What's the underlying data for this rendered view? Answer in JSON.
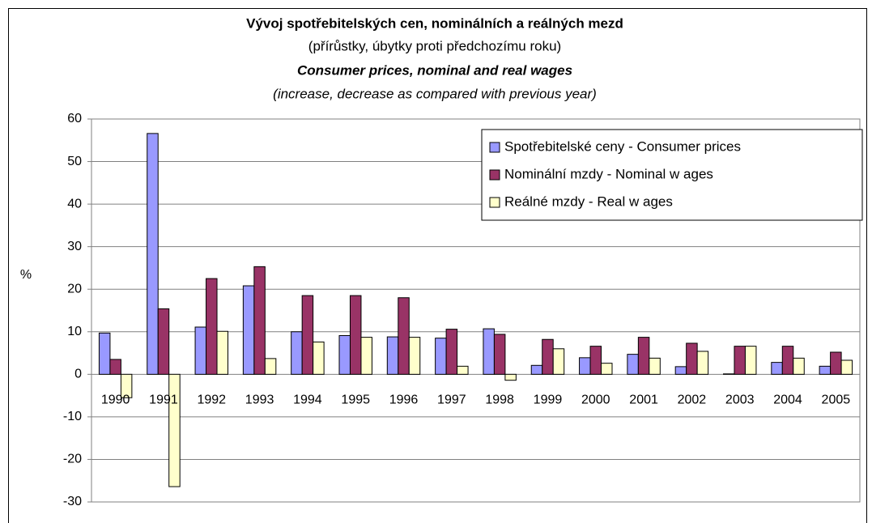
{
  "chart_data": {
    "type": "bar",
    "title": "Vývoj spotřebitelských cen, nominálních a reálných mezd",
    "subtitle": "(přírůstky, úbytky proti předchozímu roku)",
    "title_en": "Consumer prices, nominal and real wages",
    "subtitle_en": "(increase, decrease as compared with previous year)",
    "y_label": "%",
    "categories": [
      "1990",
      "1991",
      "1992",
      "1993",
      "1994",
      "1995",
      "1996",
      "1997",
      "1998",
      "1999",
      "2000",
      "2001",
      "2002",
      "2003",
      "2004",
      "2005"
    ],
    "series": [
      {
        "name": "Spotřebitelské ceny - Consumer prices",
        "color": "#9999ff",
        "values": [
          9.7,
          56.6,
          11.1,
          20.8,
          10.0,
          9.1,
          8.8,
          8.5,
          10.7,
          2.1,
          3.9,
          4.7,
          1.8,
          0.1,
          2.8,
          1.9
        ]
      },
      {
        "name": "Nominální mzdy - Nominal w ages",
        "color": "#993366",
        "values": [
          3.5,
          15.4,
          22.5,
          25.3,
          18.5,
          18.5,
          18.0,
          10.6,
          9.4,
          8.2,
          6.6,
          8.7,
          7.3,
          6.6,
          6.6,
          5.2
        ]
      },
      {
        "name": "Reálné mzdy - Real w ages",
        "color": "#ffffcc",
        "values": [
          -5.5,
          -26.4,
          10.1,
          3.7,
          7.6,
          8.7,
          8.7,
          1.9,
          -1.4,
          6.0,
          2.6,
          3.8,
          5.4,
          6.6,
          3.8,
          3.3
        ]
      }
    ],
    "ylim": [
      -30,
      60
    ],
    "yticks": [
      -30,
      -20,
      -10,
      0,
      10,
      20,
      30,
      40,
      50,
      60
    ],
    "grid": true,
    "legend": "top-right"
  }
}
